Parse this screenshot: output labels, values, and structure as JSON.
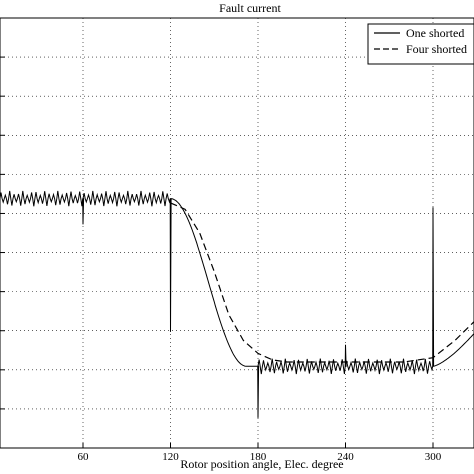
{
  "chart_data": {
    "type": "line",
    "title": "Fault current",
    "xlabel": "Rotor position angle, Elec. degree",
    "ylabel": "",
    "xlim": [
      0,
      360
    ],
    "x_ticks": [
      60,
      120,
      180,
      240,
      300
    ],
    "grid": "on",
    "legend": {
      "placement": "top-right",
      "entries": [
        "One shorted",
        "Four shorted"
      ]
    },
    "series": [
      {
        "name": "One shorted",
        "style": "solid",
        "color": "#000000",
        "segments": [
          {
            "x": [
              0,
              120
            ],
            "y_base": 0.58,
            "ripple": 0.018,
            "period": 3
          },
          {
            "x": [
              120,
              180
            ],
            "shape": "decline",
            "from": 0.58,
            "to": 0.19
          },
          {
            "x": [
              180,
              300
            ],
            "y_base": 0.19,
            "ripple": 0.018,
            "period": 3
          },
          {
            "x": [
              300,
              360
            ],
            "shape": "rise",
            "from": 0.19,
            "to": 0.41
          }
        ],
        "spikes": [
          {
            "x": 60,
            "y": 0.52
          },
          {
            "x": 120,
            "y": 0.27
          },
          {
            "x": 180,
            "y": 0.07
          },
          {
            "x": 240,
            "y": 0.24
          },
          {
            "x": 300,
            "y": 0.56
          }
        ]
      },
      {
        "name": "Four shorted",
        "style": "dashed",
        "color": "#000000",
        "points": [
          [
            120,
            0.57
          ],
          [
            130,
            0.555
          ],
          [
            140,
            0.5
          ],
          [
            150,
            0.41
          ],
          [
            160,
            0.31
          ],
          [
            170,
            0.25
          ],
          [
            180,
            0.22
          ],
          [
            190,
            0.205
          ],
          [
            200,
            0.2
          ],
          [
            240,
            0.2
          ],
          [
            280,
            0.2
          ],
          [
            300,
            0.21
          ],
          [
            315,
            0.25
          ],
          [
            330,
            0.3
          ],
          [
            345,
            0.36
          ],
          [
            360,
            0.42
          ]
        ]
      }
    ]
  }
}
